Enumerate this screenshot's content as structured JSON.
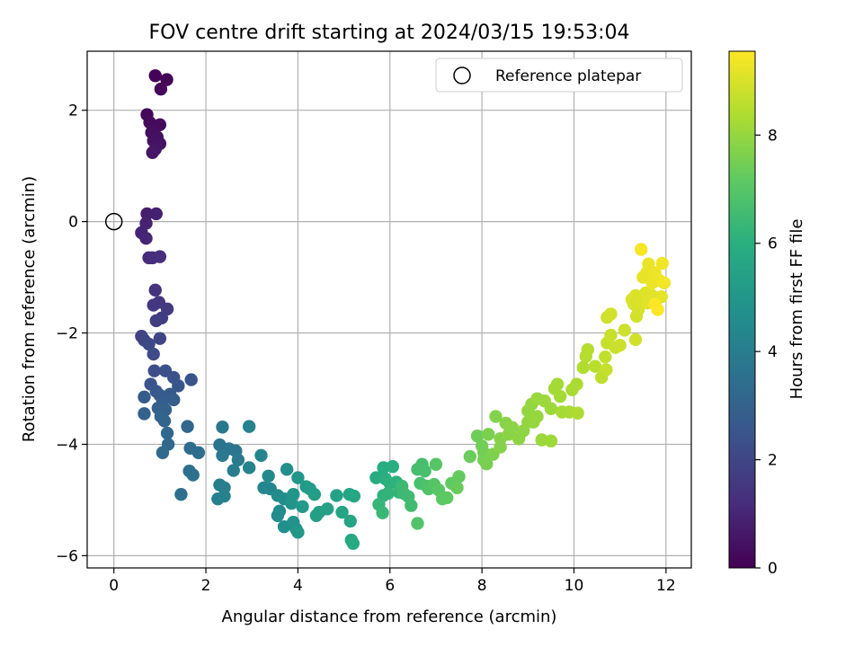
{
  "chart_data": {
    "type": "scatter",
    "title": "FOV centre drift starting at 2024/03/15 19:53:04",
    "xlabel": "Angular distance from reference (arcmin)",
    "ylabel": "Rotation from reference (arcmin)",
    "xlim": [
      -0.58,
      12.55
    ],
    "ylim": [
      -6.22,
      3.06
    ],
    "x_ticks": [
      0,
      2,
      4,
      6,
      8,
      10,
      12
    ],
    "y_ticks": [
      -6,
      -4,
      -2,
      0,
      2
    ],
    "x_tick_labels": [
      "0",
      "2",
      "4",
      "6",
      "8",
      "10",
      "12"
    ],
    "y_tick_labels": [
      "−6",
      "−4",
      "−2",
      "0",
      "2"
    ],
    "grid": true,
    "legend": {
      "location": "upper right",
      "entries": [
        "Reference platepar"
      ]
    },
    "reference_point": {
      "x": 0,
      "y": 0,
      "marker": "open circle",
      "label": "Reference platepar"
    },
    "colorbar": {
      "label": "Hours from first FF file",
      "colormap": "viridis",
      "range": [
        0,
        9.55
      ],
      "ticks": [
        0,
        2,
        4,
        6,
        8
      ],
      "tick_labels": [
        "0",
        "2",
        "4",
        "6",
        "8"
      ]
    },
    "points": [
      {
        "x": 0.9,
        "y": 2.62,
        "h": 0.05
      },
      {
        "x": 1.15,
        "y": 2.55,
        "h": 0.1
      },
      {
        "x": 1.02,
        "y": 2.38,
        "h": 0.15
      },
      {
        "x": 0.72,
        "y": 1.92,
        "h": 0.2
      },
      {
        "x": 0.78,
        "y": 1.78,
        "h": 0.25
      },
      {
        "x": 1.0,
        "y": 1.74,
        "h": 0.3
      },
      {
        "x": 0.82,
        "y": 1.6,
        "h": 0.35
      },
      {
        "x": 0.94,
        "y": 1.52,
        "h": 0.4
      },
      {
        "x": 0.86,
        "y": 1.45,
        "h": 0.45
      },
      {
        "x": 1.0,
        "y": 1.4,
        "h": 0.5
      },
      {
        "x": 0.9,
        "y": 1.3,
        "h": 0.55
      },
      {
        "x": 0.84,
        "y": 1.24,
        "h": 0.6
      },
      {
        "x": 0.72,
        "y": 0.14,
        "h": 0.8
      },
      {
        "x": 0.92,
        "y": 0.14,
        "h": 0.85
      },
      {
        "x": 0.7,
        "y": -0.03,
        "h": 0.9
      },
      {
        "x": 0.6,
        "y": -0.2,
        "h": 0.95
      },
      {
        "x": 0.7,
        "y": -0.3,
        "h": 1.0
      },
      {
        "x": 0.76,
        "y": -0.65,
        "h": 1.15
      },
      {
        "x": 0.84,
        "y": -0.65,
        "h": 1.2
      },
      {
        "x": 1.0,
        "y": -0.63,
        "h": 1.25
      },
      {
        "x": 0.9,
        "y": -1.23,
        "h": 1.4
      },
      {
        "x": 0.98,
        "y": -1.45,
        "h": 1.5
      },
      {
        "x": 0.86,
        "y": -1.5,
        "h": 1.55
      },
      {
        "x": 1.16,
        "y": -1.57,
        "h": 1.6
      },
      {
        "x": 1.04,
        "y": -1.73,
        "h": 1.7
      },
      {
        "x": 0.92,
        "y": -1.78,
        "h": 1.75
      },
      {
        "x": 0.6,
        "y": -2.06,
        "h": 1.9
      },
      {
        "x": 0.66,
        "y": -2.13,
        "h": 1.95
      },
      {
        "x": 1.0,
        "y": -2.1,
        "h": 2.0
      },
      {
        "x": 0.76,
        "y": -2.2,
        "h": 2.05
      },
      {
        "x": 0.86,
        "y": -2.38,
        "h": 2.15
      },
      {
        "x": 0.88,
        "y": -2.68,
        "h": 2.3
      },
      {
        "x": 1.12,
        "y": -2.68,
        "h": 2.35
      },
      {
        "x": 1.3,
        "y": -2.8,
        "h": 2.4
      },
      {
        "x": 1.68,
        "y": -2.84,
        "h": 2.45
      },
      {
        "x": 0.8,
        "y": -2.92,
        "h": 2.5
      },
      {
        "x": 1.4,
        "y": -2.95,
        "h": 2.55
      },
      {
        "x": 0.92,
        "y": -3.05,
        "h": 2.6
      },
      {
        "x": 1.0,
        "y": -3.12,
        "h": 2.65
      },
      {
        "x": 1.22,
        "y": -3.1,
        "h": 2.7
      },
      {
        "x": 0.66,
        "y": -3.15,
        "h": 2.75
      },
      {
        "x": 1.06,
        "y": -3.22,
        "h": 2.8
      },
      {
        "x": 1.3,
        "y": -3.2,
        "h": 2.85
      },
      {
        "x": 0.96,
        "y": -3.35,
        "h": 2.9
      },
      {
        "x": 1.12,
        "y": -3.38,
        "h": 2.95
      },
      {
        "x": 0.66,
        "y": -3.45,
        "h": 3.0
      },
      {
        "x": 1.02,
        "y": -3.5,
        "h": 3.05
      },
      {
        "x": 1.1,
        "y": -3.58,
        "h": 3.1
      },
      {
        "x": 1.6,
        "y": -3.68,
        "h": 3.15
      },
      {
        "x": 1.16,
        "y": -3.8,
        "h": 3.2
      },
      {
        "x": 1.18,
        "y": -4.0,
        "h": 3.25
      },
      {
        "x": 1.06,
        "y": -4.15,
        "h": 3.3
      },
      {
        "x": 1.66,
        "y": -4.07,
        "h": 3.35
      },
      {
        "x": 1.84,
        "y": -4.15,
        "h": 3.4
      },
      {
        "x": 1.46,
        "y": -4.9,
        "h": 3.45
      },
      {
        "x": 1.64,
        "y": -4.48,
        "h": 3.5
      },
      {
        "x": 1.72,
        "y": -4.55,
        "h": 3.55
      },
      {
        "x": 2.3,
        "y": -4.01,
        "h": 3.65
      },
      {
        "x": 2.5,
        "y": -4.08,
        "h": 3.7
      },
      {
        "x": 2.65,
        "y": -4.12,
        "h": 3.75
      },
      {
        "x": 2.36,
        "y": -3.69,
        "h": 3.8
      },
      {
        "x": 2.36,
        "y": -4.2,
        "h": 3.85
      },
      {
        "x": 2.7,
        "y": -4.28,
        "h": 3.9
      },
      {
        "x": 2.6,
        "y": -4.47,
        "h": 3.95
      },
      {
        "x": 2.3,
        "y": -4.73,
        "h": 4.0
      },
      {
        "x": 2.4,
        "y": -4.78,
        "h": 4.05
      },
      {
        "x": 2.26,
        "y": -4.98,
        "h": 4.1
      },
      {
        "x": 2.4,
        "y": -4.93,
        "h": 4.15
      },
      {
        "x": 2.94,
        "y": -3.68,
        "h": 4.2
      },
      {
        "x": 2.94,
        "y": -4.42,
        "h": 4.25
      },
      {
        "x": 3.2,
        "y": -4.2,
        "h": 4.3
      },
      {
        "x": 3.26,
        "y": -4.78,
        "h": 4.35
      },
      {
        "x": 3.4,
        "y": -4.8,
        "h": 4.4
      },
      {
        "x": 3.36,
        "y": -4.57,
        "h": 4.45
      },
      {
        "x": 3.56,
        "y": -4.92,
        "h": 4.5
      },
      {
        "x": 3.6,
        "y": -5.2,
        "h": 4.55
      },
      {
        "x": 3.56,
        "y": -5.28,
        "h": 4.6
      },
      {
        "x": 3.7,
        "y": -4.98,
        "h": 4.65
      },
      {
        "x": 3.76,
        "y": -4.45,
        "h": 4.7
      },
      {
        "x": 3.7,
        "y": -5.48,
        "h": 4.75
      },
      {
        "x": 3.9,
        "y": -5.4,
        "h": 4.8
      },
      {
        "x": 3.96,
        "y": -5.52,
        "h": 4.85
      },
      {
        "x": 3.86,
        "y": -5.06,
        "h": 4.9
      },
      {
        "x": 3.9,
        "y": -4.9,
        "h": 4.95
      },
      {
        "x": 4.0,
        "y": -4.6,
        "h": 5.0
      },
      {
        "x": 4.0,
        "y": -5.58,
        "h": 5.05
      },
      {
        "x": 4.1,
        "y": -5.12,
        "h": 5.1
      },
      {
        "x": 4.18,
        "y": -4.76,
        "h": 5.15
      },
      {
        "x": 4.26,
        "y": -4.8,
        "h": 5.2
      },
      {
        "x": 4.36,
        "y": -4.9,
        "h": 5.25
      },
      {
        "x": 4.4,
        "y": -5.28,
        "h": 5.3
      },
      {
        "x": 4.46,
        "y": -5.22,
        "h": 5.35
      },
      {
        "x": 4.64,
        "y": -5.16,
        "h": 5.4
      },
      {
        "x": 4.84,
        "y": -4.92,
        "h": 5.45
      },
      {
        "x": 4.96,
        "y": -5.22,
        "h": 5.5
      },
      {
        "x": 5.14,
        "y": -5.38,
        "h": 5.55
      },
      {
        "x": 5.12,
        "y": -4.9,
        "h": 5.6
      },
      {
        "x": 5.22,
        "y": -4.93,
        "h": 5.65
      },
      {
        "x": 5.16,
        "y": -5.72,
        "h": 5.7
      },
      {
        "x": 5.2,
        "y": -5.78,
        "h": 5.75
      },
      {
        "x": 5.7,
        "y": -4.6,
        "h": 5.85
      },
      {
        "x": 5.86,
        "y": -4.42,
        "h": 5.9
      },
      {
        "x": 6.06,
        "y": -4.4,
        "h": 5.95
      },
      {
        "x": 5.9,
        "y": -4.62,
        "h": 6.0
      },
      {
        "x": 6.0,
        "y": -4.7,
        "h": 6.05
      },
      {
        "x": 6.14,
        "y": -4.68,
        "h": 6.1
      },
      {
        "x": 5.86,
        "y": -4.92,
        "h": 6.15
      },
      {
        "x": 5.96,
        "y": -4.88,
        "h": 6.2
      },
      {
        "x": 6.2,
        "y": -4.86,
        "h": 6.25
      },
      {
        "x": 5.76,
        "y": -5.08,
        "h": 6.3
      },
      {
        "x": 5.84,
        "y": -5.23,
        "h": 6.35
      },
      {
        "x": 6.26,
        "y": -4.75,
        "h": 6.4
      },
      {
        "x": 6.3,
        "y": -4.88,
        "h": 6.45
      },
      {
        "x": 6.4,
        "y": -4.94,
        "h": 6.5
      },
      {
        "x": 6.46,
        "y": -5.1,
        "h": 6.55
      },
      {
        "x": 6.6,
        "y": -4.45,
        "h": 6.6
      },
      {
        "x": 6.7,
        "y": -4.36,
        "h": 6.65
      },
      {
        "x": 6.76,
        "y": -4.48,
        "h": 6.7
      },
      {
        "x": 6.66,
        "y": -4.7,
        "h": 6.75
      },
      {
        "x": 6.8,
        "y": -4.75,
        "h": 6.8
      },
      {
        "x": 6.84,
        "y": -4.8,
        "h": 6.85
      },
      {
        "x": 6.6,
        "y": -5.42,
        "h": 6.9
      },
      {
        "x": 6.96,
        "y": -4.72,
        "h": 6.95
      },
      {
        "x": 7.0,
        "y": -4.36,
        "h": 7.0
      },
      {
        "x": 7.06,
        "y": -4.82,
        "h": 7.05
      },
      {
        "x": 7.14,
        "y": -4.98,
        "h": 7.1
      },
      {
        "x": 7.24,
        "y": -4.96,
        "h": 7.15
      },
      {
        "x": 7.34,
        "y": -4.7,
        "h": 7.2
      },
      {
        "x": 7.5,
        "y": -4.58,
        "h": 7.25
      },
      {
        "x": 7.46,
        "y": -4.78,
        "h": 7.3
      },
      {
        "x": 7.74,
        "y": -4.22,
        "h": 7.35
      },
      {
        "x": 7.9,
        "y": -3.85,
        "h": 7.4
      },
      {
        "x": 8.0,
        "y": -4.03,
        "h": 7.45
      },
      {
        "x": 8.04,
        "y": -4.15,
        "h": 7.5
      },
      {
        "x": 8.04,
        "y": -4.28,
        "h": 7.52
      },
      {
        "x": 8.1,
        "y": -4.35,
        "h": 7.55
      },
      {
        "x": 8.14,
        "y": -3.82,
        "h": 7.6
      },
      {
        "x": 8.24,
        "y": -4.18,
        "h": 7.65
      },
      {
        "x": 8.3,
        "y": -3.5,
        "h": 7.7
      },
      {
        "x": 8.4,
        "y": -3.9,
        "h": 7.72
      },
      {
        "x": 8.4,
        "y": -4.05,
        "h": 7.75
      },
      {
        "x": 8.52,
        "y": -3.62,
        "h": 7.8
      },
      {
        "x": 8.58,
        "y": -3.82,
        "h": 7.82
      },
      {
        "x": 8.66,
        "y": -3.7,
        "h": 7.85
      },
      {
        "x": 8.8,
        "y": -3.9,
        "h": 7.88
      },
      {
        "x": 8.9,
        "y": -3.76,
        "h": 7.9
      },
      {
        "x": 9.0,
        "y": -3.6,
        "h": 7.92
      },
      {
        "x": 9.0,
        "y": -3.4,
        "h": 7.95
      },
      {
        "x": 9.08,
        "y": -3.28,
        "h": 7.98
      },
      {
        "x": 9.12,
        "y": -3.6,
        "h": 8.0
      },
      {
        "x": 9.2,
        "y": -3.5,
        "h": 8.02
      },
      {
        "x": 9.2,
        "y": -3.18,
        "h": 8.05
      },
      {
        "x": 9.3,
        "y": -3.92,
        "h": 8.08
      },
      {
        "x": 9.36,
        "y": -3.22,
        "h": 8.1
      },
      {
        "x": 9.5,
        "y": -3.36,
        "h": 8.12
      },
      {
        "x": 9.5,
        "y": -3.94,
        "h": 8.15
      },
      {
        "x": 9.58,
        "y": -3.0,
        "h": 8.18
      },
      {
        "x": 9.64,
        "y": -2.92,
        "h": 8.2
      },
      {
        "x": 9.7,
        "y": -3.14,
        "h": 8.22
      },
      {
        "x": 9.74,
        "y": -3.42,
        "h": 8.25
      },
      {
        "x": 9.9,
        "y": -3.42,
        "h": 8.28
      },
      {
        "x": 9.96,
        "y": -3.02,
        "h": 8.3
      },
      {
        "x": 10.06,
        "y": -2.92,
        "h": 8.32
      },
      {
        "x": 10.08,
        "y": -3.44,
        "h": 8.35
      },
      {
        "x": 10.2,
        "y": -2.62,
        "h": 8.4
      },
      {
        "x": 10.26,
        "y": -2.42,
        "h": 8.45
      },
      {
        "x": 10.3,
        "y": -2.3,
        "h": 8.5
      },
      {
        "x": 10.46,
        "y": -2.6,
        "h": 8.55
      },
      {
        "x": 10.6,
        "y": -2.8,
        "h": 8.6
      },
      {
        "x": 10.68,
        "y": -2.43,
        "h": 8.65
      },
      {
        "x": 10.7,
        "y": -2.66,
        "h": 8.7
      },
      {
        "x": 10.72,
        "y": -2.18,
        "h": 8.72
      },
      {
        "x": 10.8,
        "y": -2.04,
        "h": 8.75
      },
      {
        "x": 10.9,
        "y": -2.26,
        "h": 8.78
      },
      {
        "x": 11.0,
        "y": -2.22,
        "h": 8.8
      },
      {
        "x": 11.1,
        "y": -1.95,
        "h": 8.82
      },
      {
        "x": 10.72,
        "y": -1.72,
        "h": 8.85
      },
      {
        "x": 10.8,
        "y": -1.66,
        "h": 8.88
      },
      {
        "x": 11.34,
        "y": -2.12,
        "h": 8.9
      },
      {
        "x": 11.36,
        "y": -1.7,
        "h": 8.92
      },
      {
        "x": 11.4,
        "y": -1.58,
        "h": 8.95
      },
      {
        "x": 11.3,
        "y": -1.48,
        "h": 8.98
      },
      {
        "x": 11.26,
        "y": -1.4,
        "h": 9.0
      },
      {
        "x": 11.34,
        "y": -1.33,
        "h": 9.02
      },
      {
        "x": 11.48,
        "y": -1.42,
        "h": 9.05
      },
      {
        "x": 11.56,
        "y": -1.28,
        "h": 9.08
      },
      {
        "x": 11.6,
        "y": -1.46,
        "h": 9.1
      },
      {
        "x": 11.7,
        "y": -1.33,
        "h": 9.12
      },
      {
        "x": 11.8,
        "y": -1.4,
        "h": 9.15
      },
      {
        "x": 11.9,
        "y": -1.35,
        "h": 9.18
      },
      {
        "x": 11.5,
        "y": -1.0,
        "h": 9.2
      },
      {
        "x": 11.58,
        "y": -0.92,
        "h": 9.22
      },
      {
        "x": 11.62,
        "y": -0.76,
        "h": 9.25
      },
      {
        "x": 11.7,
        "y": -1.1,
        "h": 9.28
      },
      {
        "x": 11.76,
        "y": -0.92,
        "h": 9.3
      },
      {
        "x": 11.86,
        "y": -1.06,
        "h": 9.32
      },
      {
        "x": 11.92,
        "y": -0.75,
        "h": 9.35
      },
      {
        "x": 11.96,
        "y": -1.1,
        "h": 9.4
      },
      {
        "x": 11.46,
        "y": -0.5,
        "h": 9.45
      },
      {
        "x": 11.76,
        "y": -1.48,
        "h": 9.5
      },
      {
        "x": 11.82,
        "y": -1.58,
        "h": 9.55
      }
    ]
  }
}
